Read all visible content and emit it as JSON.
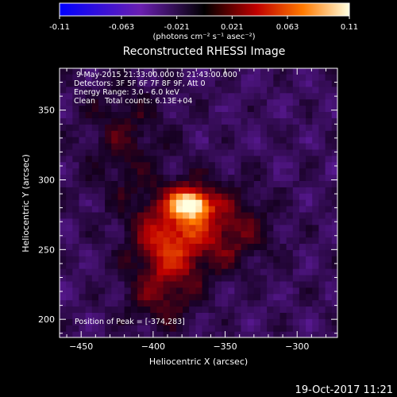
{
  "colorbar": {
    "ticks": [
      "-0.11",
      "-0.063",
      "-0.021",
      "0.021",
      "0.063",
      "0.11"
    ],
    "tick_values": [
      -0.11,
      -0.063,
      -0.021,
      0.021,
      0.063,
      0.11
    ],
    "range": [
      -0.11,
      0.11
    ],
    "unit_label": "(photons cm⁻² s⁻¹ asec⁻²)"
  },
  "chart_data": {
    "type": "heatmap",
    "title": "Reconstructed RHESSI Image",
    "xlabel": "Heliocentric X (arcsec)",
    "ylabel": "Heliocentric Y (arcsec)",
    "xlim": [
      -465,
      -272
    ],
    "ylim": [
      187,
      380
    ],
    "x_ticks": [
      -450,
      -400,
      -350,
      -300
    ],
    "x_tick_labels": [
      "−450",
      "−400",
      "−350",
      "−300"
    ],
    "y_ticks": [
      200,
      250,
      300,
      350
    ],
    "y_tick_labels": [
      "200",
      "250",
      "300",
      "350"
    ],
    "annotations": [
      "9-May-2015 21:33:00.000 to 21:43:00.000",
      "Detectors: 3F 5F 6F 7F 8F 9F, Att 0",
      "Energy Range: 3.0 - 6.0 keV",
      "Clean    Total counts: 6.13E+04"
    ],
    "peak_label": "Position of Peak = [-374,283]",
    "peak": [
      -374,
      283
    ],
    "peak_value": 0.11,
    "sources": [
      {
        "x": -374,
        "y": 283,
        "amp": 0.11,
        "sx": 9,
        "sy": 7
      },
      {
        "x": -382,
        "y": 268,
        "amp": 0.05,
        "sx": 22,
        "sy": 20
      },
      {
        "x": -390,
        "y": 245,
        "amp": 0.035,
        "sx": 16,
        "sy": 18
      },
      {
        "x": -395,
        "y": 215,
        "amp": 0.028,
        "sx": 18,
        "sy": 16
      },
      {
        "x": -345,
        "y": 265,
        "amp": 0.03,
        "sx": 20,
        "sy": 22
      },
      {
        "x": -420,
        "y": 330,
        "amp": 0.025,
        "sx": 20,
        "sy": 30
      }
    ],
    "background": -0.02,
    "grid": false
  },
  "footer": {
    "date": "19-Oct-2017 11:21"
  }
}
